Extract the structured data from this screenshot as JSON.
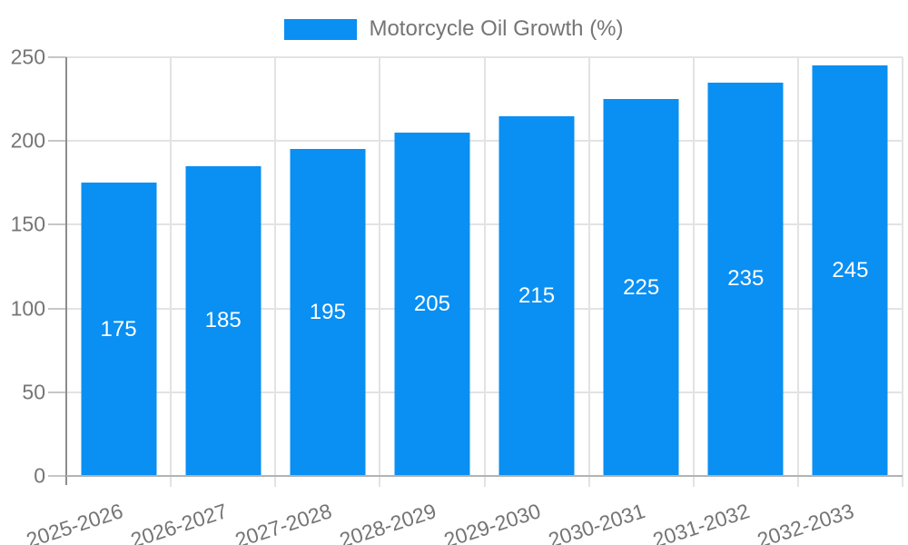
{
  "chart_data": {
    "type": "bar",
    "title": "",
    "legend_label": "Motorcycle Oil Growth (%)",
    "legend_position": "top-center",
    "categories": [
      "2025-2026",
      "2026-2027",
      "2027-2028",
      "2028-2029",
      "2029-2030",
      "2030-2031",
      "2031-2032",
      "2032-2033"
    ],
    "values": [
      175,
      185,
      195,
      205,
      215,
      225,
      235,
      245
    ],
    "xlabel": "",
    "ylabel": "",
    "ylim": [
      0,
      250
    ],
    "yticks": [
      0,
      50,
      100,
      150,
      200,
      250
    ],
    "grid": true,
    "value_labels_inside_bars": true,
    "colors": {
      "bar": "#0a8ff2",
      "value_text": "#ffffff",
      "axis_text": "#757575",
      "gridline": "#e3e3e3",
      "yaxis_line": "#8c8c8c",
      "baseline": "#b3b3b3",
      "tick": "#c6c6c6"
    }
  }
}
